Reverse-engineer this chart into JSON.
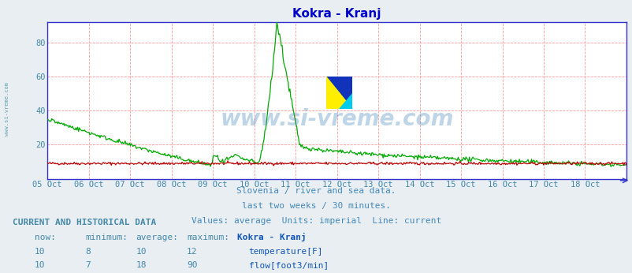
{
  "title": "Kokra - Kranj",
  "title_color": "#0000cc",
  "bg_color": "#e8eef2",
  "plot_bg_color": "#ffffff",
  "grid_color": "#ff9999",
  "xlabel_color": "#4488aa",
  "ylabel_color": "#4488aa",
  "axis_line_color": "#3333cc",
  "x_tick_labels": [
    "05 Oct",
    "06 Oct",
    "07 Oct",
    "08 Oct",
    "09 Oct",
    "10 Oct",
    "11 Oct",
    "12 Oct",
    "13 Oct",
    "14 Oct",
    "15 Oct",
    "16 Oct",
    "17 Oct",
    "18 Oct"
  ],
  "ylim": [
    0,
    92
  ],
  "yticks": [
    20,
    40,
    60,
    80
  ],
  "subtitle_lines": [
    "Slovenia / river and sea data.",
    "last two weeks / 30 minutes.",
    "Values: average  Units: imperial  Line: current"
  ],
  "subtitle_color": "#4488bb",
  "watermark_text": "www.si-vreme.com",
  "watermark_color": "#4488bb",
  "side_text": "www.si-vreme.com",
  "side_text_color": "#5599aa",
  "table_header_color": "#4488aa",
  "table_data_color": "#4488aa",
  "table_label_color": "#1155bb",
  "temp_color": "#bb0000",
  "flow_color": "#00aa00",
  "temp_now": 10,
  "temp_min": 8,
  "temp_avg": 10,
  "temp_max": 12,
  "flow_now": 10,
  "flow_min": 7,
  "flow_avg": 18,
  "flow_max": 90
}
